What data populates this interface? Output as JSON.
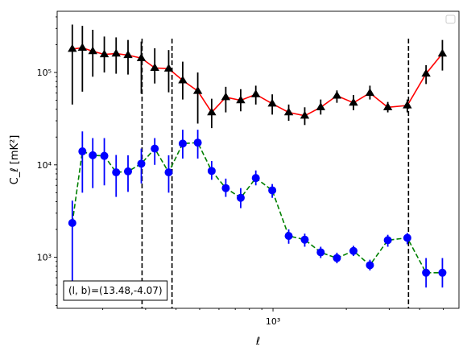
{
  "chart_data": {
    "type": "line",
    "xscale": "log",
    "yscale": "log",
    "xlim": [
      130,
      5800
    ],
    "ylim": [
      280,
      460000
    ],
    "xlabel": "ℓ",
    "ylabel": "C_ℓ  [mK²]",
    "x_tick_labels": [
      {
        "value": 1000,
        "label": "10³"
      }
    ],
    "y_tick_labels": [
      {
        "value": 1000,
        "label": "10³"
      },
      {
        "value": 10000,
        "label": "10⁴"
      },
      {
        "value": 100000,
        "label": "10⁵"
      }
    ],
    "grid": false,
    "legend": {
      "position": "top-right",
      "entries": []
    },
    "annotation": {
      "text": "(l, b)=(13.48,-4.07)",
      "position": "bottom-left"
    },
    "vlines": [
      290,
      385,
      3600
    ],
    "series": [
      {
        "color": "#ff0000",
        "marker_color": "#000000",
        "marker": "triangle",
        "linestyle": "solid",
        "errorbar_color": "#000000",
        "points": [
          {
            "x": 150,
            "y": 180000,
            "lo": 45000,
            "hi": 330000
          },
          {
            "x": 165,
            "y": 185000,
            "lo": 62000,
            "hi": 320000
          },
          {
            "x": 182,
            "y": 170000,
            "lo": 90000,
            "hi": 290000
          },
          {
            "x": 203,
            "y": 157000,
            "lo": 100000,
            "hi": 245000
          },
          {
            "x": 227,
            "y": 160000,
            "lo": 97000,
            "hi": 240000
          },
          {
            "x": 254,
            "y": 154000,
            "lo": 95000,
            "hi": 225000
          },
          {
            "x": 288,
            "y": 143000,
            "lo": 59000,
            "hi": 216000
          },
          {
            "x": 327,
            "y": 112000,
            "lo": 76000,
            "hi": 183000
          },
          {
            "x": 373,
            "y": 110000,
            "lo": 61000,
            "hi": 175000
          },
          {
            "x": 426,
            "y": 82000,
            "lo": 51000,
            "hi": 131000
          },
          {
            "x": 491,
            "y": 63000,
            "lo": 28000,
            "hi": 100000
          },
          {
            "x": 560,
            "y": 37000,
            "lo": 25000,
            "hi": 52000
          },
          {
            "x": 640,
            "y": 54000,
            "lo": 37000,
            "hi": 70000
          },
          {
            "x": 737,
            "y": 50000,
            "lo": 38000,
            "hi": 66000
          },
          {
            "x": 850,
            "y": 58000,
            "lo": 45000,
            "hi": 72000
          },
          {
            "x": 993,
            "y": 46000,
            "lo": 35000,
            "hi": 58000
          },
          {
            "x": 1160,
            "y": 37000,
            "lo": 30000,
            "hi": 45000
          },
          {
            "x": 1350,
            "y": 34000,
            "lo": 27000,
            "hi": 42000
          },
          {
            "x": 1570,
            "y": 42000,
            "lo": 35000,
            "hi": 51000
          },
          {
            "x": 1830,
            "y": 56000,
            "lo": 47000,
            "hi": 64000
          },
          {
            "x": 2140,
            "y": 47000,
            "lo": 39000,
            "hi": 57000
          },
          {
            "x": 2500,
            "y": 60000,
            "lo": 51000,
            "hi": 72000
          },
          {
            "x": 2960,
            "y": 42000,
            "lo": 37000,
            "hi": 48000
          },
          {
            "x": 3560,
            "y": 44000,
            "lo": 37000,
            "hi": 51000
          },
          {
            "x": 4250,
            "y": 97000,
            "lo": 75000,
            "hi": 120000
          },
          {
            "x": 4960,
            "y": 160000,
            "lo": 105000,
            "hi": 225000
          }
        ]
      },
      {
        "color": "#008000",
        "marker_color": "#0000ff",
        "marker": "circle",
        "linestyle": "dashed",
        "errorbar_color": "#0000ff",
        "points": [
          {
            "x": 150,
            "y": 2350,
            "lo": 460,
            "hi": 4100
          },
          {
            "x": 165,
            "y": 14000,
            "lo": 5000,
            "hi": 23000
          },
          {
            "x": 182,
            "y": 12700,
            "lo": 5600,
            "hi": 19500
          },
          {
            "x": 203,
            "y": 12500,
            "lo": 6000,
            "hi": 19500
          },
          {
            "x": 227,
            "y": 8300,
            "lo": 4500,
            "hi": 12800
          },
          {
            "x": 254,
            "y": 8500,
            "lo": 5100,
            "hi": 12700
          },
          {
            "x": 288,
            "y": 10300,
            "lo": 6300,
            "hi": 15000
          },
          {
            "x": 327,
            "y": 15000,
            "lo": 10000,
            "hi": 19500
          },
          {
            "x": 373,
            "y": 8300,
            "lo": 5000,
            "hi": 12700
          },
          {
            "x": 426,
            "y": 17000,
            "lo": 11700,
            "hi": 24000
          },
          {
            "x": 491,
            "y": 17400,
            "lo": 11700,
            "hi": 24000
          },
          {
            "x": 560,
            "y": 8600,
            "lo": 6900,
            "hi": 11000
          },
          {
            "x": 640,
            "y": 5600,
            "lo": 4500,
            "hi": 7100
          },
          {
            "x": 737,
            "y": 4400,
            "lo": 3400,
            "hi": 5600
          },
          {
            "x": 850,
            "y": 7200,
            "lo": 6000,
            "hi": 8700
          },
          {
            "x": 993,
            "y": 5300,
            "lo": 4400,
            "hi": 6200
          },
          {
            "x": 1160,
            "y": 1700,
            "lo": 1400,
            "hi": 2000
          },
          {
            "x": 1350,
            "y": 1550,
            "lo": 1300,
            "hi": 1800
          },
          {
            "x": 1570,
            "y": 1130,
            "lo": 980,
            "hi": 1300
          },
          {
            "x": 1830,
            "y": 980,
            "lo": 860,
            "hi": 1120
          },
          {
            "x": 2140,
            "y": 1170,
            "lo": 1030,
            "hi": 1330
          },
          {
            "x": 2500,
            "y": 820,
            "lo": 720,
            "hi": 940
          },
          {
            "x": 2960,
            "y": 1530,
            "lo": 1300,
            "hi": 1750
          },
          {
            "x": 3560,
            "y": 1620,
            "lo": 1380,
            "hi": 1830
          },
          {
            "x": 4250,
            "y": 680,
            "lo": 470,
            "hi": 980
          },
          {
            "x": 4960,
            "y": 680,
            "lo": 470,
            "hi": 980
          }
        ]
      }
    ]
  }
}
